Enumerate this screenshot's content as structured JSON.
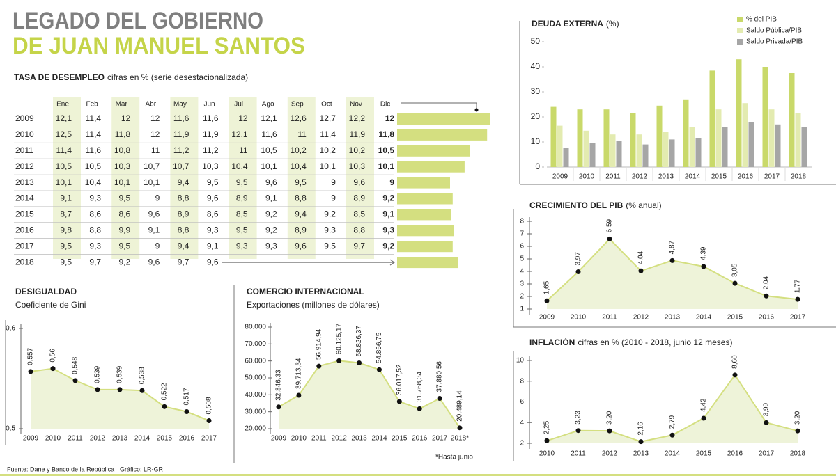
{
  "header": {
    "line1": "LEGADO DEL GOBIERNO",
    "line2": "DE JUAN MANUEL SANTOS"
  },
  "unemployment": {
    "title": "TASA DE DESEMPLEO",
    "subtitle": "cifras en % (serie desestacionalizada)",
    "months": [
      "Ene",
      "Feb",
      "Mar",
      "Abr",
      "May",
      "Jun",
      "Jul",
      "Ago",
      "Sep",
      "Oct",
      "Nov",
      "Dic"
    ],
    "rows": [
      {
        "year": "2009",
        "cells": [
          "12,1",
          "11,4",
          "12",
          "12",
          "11,6",
          "11,6",
          "12",
          "12,1",
          "12,6",
          "12,7",
          "12,2",
          "12"
        ]
      },
      {
        "year": "2010",
        "cells": [
          "12,5",
          "11,4",
          "11,8",
          "12",
          "11,9",
          "11,9",
          "12,1",
          "11,6",
          "11",
          "11,4",
          "11,9",
          "11,8"
        ]
      },
      {
        "year": "2011",
        "cells": [
          "11,4",
          "11,6",
          "10,8",
          "11",
          "11,2",
          "11,2",
          "11",
          "10,5",
          "10,2",
          "10,2",
          "10,2",
          "10,5"
        ]
      },
      {
        "year": "2012",
        "cells": [
          "10,5",
          "10,5",
          "10,3",
          "10,7",
          "10,7",
          "10,3",
          "10,4",
          "10,1",
          "10,4",
          "10,1",
          "10,3",
          "10,1"
        ]
      },
      {
        "year": "2013",
        "cells": [
          "10,1",
          "10,4",
          "10,1",
          "10,1",
          "9,4",
          "9,5",
          "9,5",
          "9,6",
          "9,5",
          "9",
          "9,6",
          "9"
        ]
      },
      {
        "year": "2014",
        "cells": [
          "9,1",
          "9,3",
          "9,5",
          "9",
          "8,8",
          "9,6",
          "8,9",
          "9,1",
          "8,8",
          "9",
          "8,9",
          "9,2"
        ]
      },
      {
        "year": "2015",
        "cells": [
          "8,7",
          "8,6",
          "8,6",
          "9,6",
          "8,9",
          "8,6",
          "8,5",
          "9,2",
          "9,4",
          "9,2",
          "8,5",
          "9,1"
        ]
      },
      {
        "year": "2016",
        "cells": [
          "9,8",
          "8,8",
          "9,9",
          "9,1",
          "8,8",
          "9,3",
          "9,5",
          "9,2",
          "8,9",
          "9,3",
          "8,8",
          "9,3"
        ]
      },
      {
        "year": "2017",
        "cells": [
          "9,5",
          "9,3",
          "9,5",
          "9",
          "9,4",
          "9,1",
          "9,3",
          "9,3",
          "9,6",
          "9,5",
          "9,7",
          "9,2"
        ]
      },
      {
        "year": "2018",
        "cells": [
          "9,5",
          "9,7",
          "9,2",
          "9,6",
          "9,7",
          "9,6"
        ]
      }
    ],
    "bars": {
      "values": [
        12,
        11.8,
        10.5,
        10.1,
        9,
        9.2,
        9.1,
        9.3,
        9.2,
        9.6
      ],
      "xlim": [
        5,
        12
      ],
      "color": "#d4df80"
    }
  },
  "chart_data": [
    {
      "type": "bar",
      "title": "DEUDA EXTERNA",
      "title_note": "(%)",
      "categories": [
        "2009",
        "2010",
        "2011",
        "2012",
        "2013",
        "2014",
        "2015",
        "2016",
        "2017",
        "2018"
      ],
      "series": [
        {
          "name": "% del PIB",
          "color": "#c9d96a",
          "values": [
            24,
            23,
            23,
            21.5,
            24.5,
            27,
            38.5,
            43,
            40,
            37.5
          ]
        },
        {
          "name": "Saldo Pública/PIB",
          "color": "#e3ebb0",
          "values": [
            16.5,
            14.5,
            13,
            13,
            14,
            16,
            23,
            25.5,
            23,
            21.5
          ]
        },
        {
          "name": "Saldo Privada/PIB",
          "color": "#a6a6a6",
          "values": [
            7.5,
            9.5,
            10.5,
            9,
            11,
            11.5,
            16,
            18,
            17,
            16
          ]
        }
      ],
      "ylim": [
        0,
        50
      ],
      "yticks": [
        0,
        10,
        20,
        30,
        40,
        50
      ],
      "legend": "top-right"
    },
    {
      "type": "line",
      "title": "CRECIMIENTO DEL PIB",
      "title_note": "(% anual)",
      "categories": [
        "2009",
        "2010",
        "2011",
        "2012",
        "2013",
        "2014",
        "2015",
        "2016",
        "2017"
      ],
      "values": [
        1.65,
        3.97,
        6.59,
        4.04,
        4.87,
        4.39,
        3.05,
        2.04,
        1.77
      ],
      "value_labels": [
        "1,65",
        "3,97",
        "6,59",
        "4,04",
        "4,87",
        "4,39",
        "3,05",
        "2,04",
        "1,77"
      ],
      "ylim": [
        1,
        8
      ],
      "yticks": [
        1,
        2,
        3,
        4,
        5,
        6,
        7,
        8
      ],
      "color": "#d4df80",
      "area_color": "#eef3d9"
    },
    {
      "type": "line",
      "title": "INFLACIÓN",
      "title_note": "cifras en % (2010 - 2018, junio 12 meses)",
      "categories": [
        "2010",
        "2011",
        "2012",
        "2013",
        "2014",
        "2015",
        "2016",
        "2017",
        "2018"
      ],
      "values": [
        2.25,
        3.23,
        3.2,
        2.16,
        2.79,
        4.42,
        8.6,
        3.99,
        3.2
      ],
      "value_labels": [
        "2,25",
        "3,23",
        "3,20",
        "2,16",
        "2,79",
        "4,42",
        "8,60",
        "3,99",
        "3,20"
      ],
      "ylim": [
        2,
        10
      ],
      "yticks": [
        2,
        4,
        6,
        8,
        10
      ],
      "color": "#d4df80",
      "area_color": "#eef3d9"
    },
    {
      "type": "line",
      "title": "DESIGUALDAD",
      "subtitle": "Coeficiente de Gini",
      "categories": [
        "2009",
        "2010",
        "2011",
        "2012",
        "2013",
        "2014",
        "2015",
        "2016",
        "2017"
      ],
      "values": [
        0.557,
        0.56,
        0.548,
        0.539,
        0.539,
        0.538,
        0.522,
        0.517,
        0.508
      ],
      "value_labels": [
        "0,557",
        "0,56",
        "0,548",
        "0,539",
        "0,539",
        "0,538",
        "0,522",
        "0,517",
        "0,508"
      ],
      "ylim": [
        0.5,
        0.6
      ],
      "yticks": [
        {
          "value": 0.5,
          "label": "0,5"
        },
        {
          "value": 0.6,
          "label": "0,6"
        }
      ],
      "color": "#d4df80",
      "area_color": "#eef3d9"
    },
    {
      "type": "line",
      "title": "COMERCIO INTERNACIONAL",
      "subtitle": "Exportaciones (millones de dólares)",
      "note": "*Hasta junio",
      "categories": [
        "2009",
        "2010",
        "2011",
        "2012",
        "2013",
        "2014",
        "2015",
        "2016",
        "2017",
        "2018*"
      ],
      "values": [
        32846.33,
        39713.34,
        56914.94,
        60125.17,
        58826.37,
        54856.75,
        36017.52,
        31768.34,
        37880.56,
        20489.14
      ],
      "value_labels": [
        "32.846,33",
        "39.713,34",
        "56.914,94",
        "60.125,17",
        "58.826,37",
        "54.856,75",
        "36.017,52",
        "31.768,34",
        "37.880,56",
        "20.489,14"
      ],
      "ylim": [
        20000,
        80000
      ],
      "yticks": [
        {
          "value": 20000,
          "label": "20.000"
        },
        {
          "value": 30000,
          "label": "30.000"
        },
        {
          "value": 40000,
          "label": "40.000"
        },
        {
          "value": 50000,
          "label": "50.000"
        },
        {
          "value": 60000,
          "label": "60.000"
        },
        {
          "value": 70000,
          "label": "70.000"
        },
        {
          "value": 80000,
          "label": "80.000"
        }
      ],
      "color": "#d4df80",
      "area_color": "#eef3d9"
    }
  ],
  "footer": {
    "source": "Fuente: Dane y Banco de la República",
    "credit": "Gráfico: LR-GR"
  }
}
